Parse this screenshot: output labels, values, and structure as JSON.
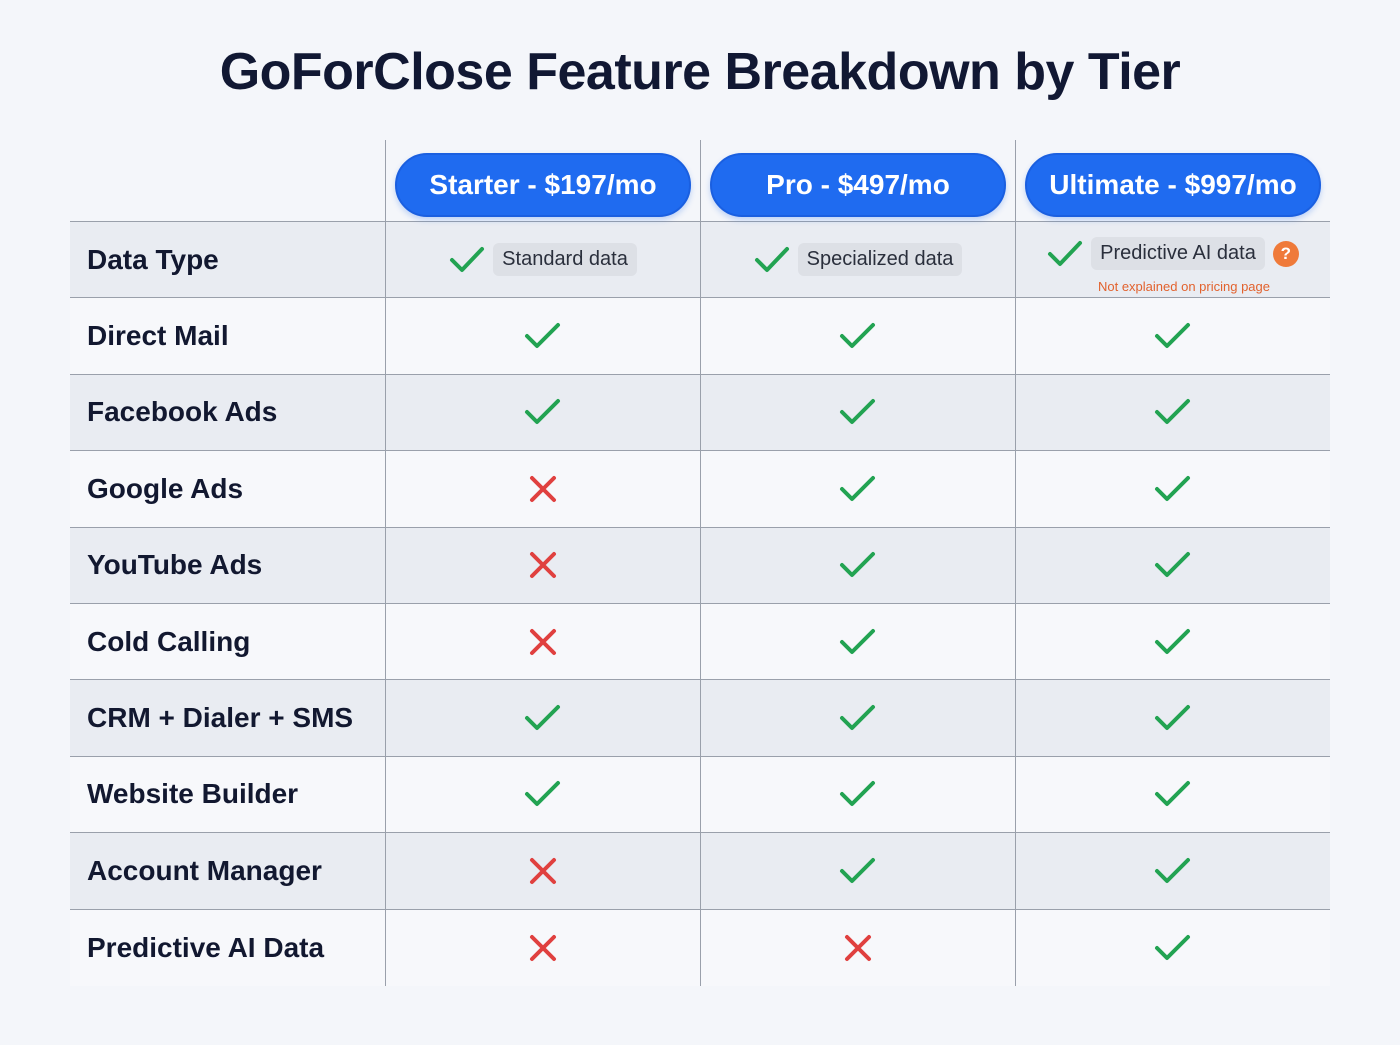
{
  "title": "GoForClose Feature Breakdown by Tier",
  "colors": {
    "tier_pill": "#1f6bf0",
    "check": "#22a352",
    "cross": "#e0403f",
    "note": "#e2622e",
    "question_badge": "#ef7a3a"
  },
  "tiers": [
    {
      "label": "Starter - $197/mo"
    },
    {
      "label": "Pro - $497/mo"
    },
    {
      "label": "Ultimate - $997/mo"
    }
  ],
  "data_type_row": {
    "label": "Data Type",
    "values": [
      {
        "icon": "check-icon",
        "badge": "Standard data"
      },
      {
        "icon": "check-icon",
        "badge": "Specialized data"
      },
      {
        "icon": "check-icon",
        "badge": "Predictive AI data",
        "help_icon": "?",
        "note": "Not explained on pricing page"
      }
    ]
  },
  "rows": [
    {
      "label": "Direct Mail",
      "values": [
        "check",
        "check",
        "check"
      ]
    },
    {
      "label": "Facebook Ads",
      "values": [
        "check",
        "check",
        "check"
      ]
    },
    {
      "label": "Google Ads",
      "values": [
        "cross",
        "check",
        "check"
      ]
    },
    {
      "label": "YouTube Ads",
      "values": [
        "cross",
        "check",
        "check"
      ]
    },
    {
      "label": "Cold Calling",
      "values": [
        "cross",
        "check",
        "check"
      ]
    },
    {
      "label": "CRM + Dialer + SMS",
      "values": [
        "check",
        "check",
        "check"
      ]
    },
    {
      "label": "Website Builder",
      "values": [
        "check",
        "check",
        "check"
      ]
    },
    {
      "label": "Account Manager",
      "values": [
        "cross",
        "check",
        "check"
      ]
    },
    {
      "label": "Predictive AI Data",
      "values": [
        "cross",
        "cross",
        "check"
      ]
    }
  ]
}
